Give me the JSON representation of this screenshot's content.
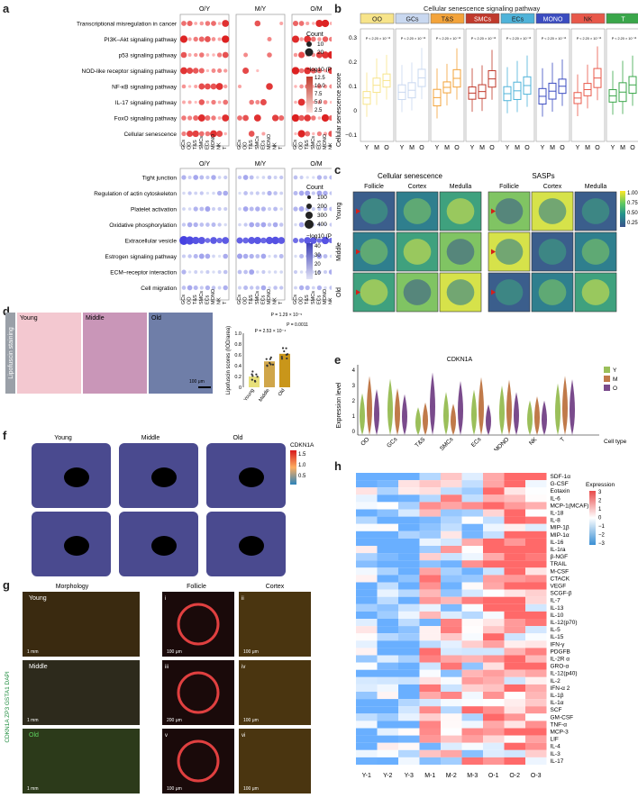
{
  "letters": {
    "a": "a",
    "b": "b",
    "c": "c",
    "d": "d",
    "e": "e",
    "f": "f",
    "g": "g",
    "h": "h"
  },
  "a": {
    "group_titles": [
      "O/Y",
      "M/Y",
      "O/M"
    ],
    "top_terms": [
      "Transcriptional misregulation in cancer",
      "PI3K–Akt signaling pathway",
      "p53 signaling pathway",
      "NOD-like receptor signaling pathway",
      "NF-κB signaling pathway",
      "IL-17 signaling pathway",
      "FoxO signaling pathway",
      "Cellular senescence"
    ],
    "bottom_terms": [
      "Tight junction",
      "Regulation of actin cytoskeleton",
      "Platelet activation",
      "Oxidative phosphorylation",
      "Extracellular vesicle",
      "Estrogen signaling pathway",
      "ECM–receptor interaction",
      "Cell migration"
    ],
    "celltypes_top": [
      "GCs",
      "OO",
      "T&S",
      "SMCs",
      "ECs",
      "MONO",
      "NK",
      "T"
    ],
    "legend_top": {
      "count_title": "Count",
      "count_values": [
        "10",
        "20"
      ],
      "p_title": "−log10 (P value)",
      "p_values": [
        "12.5",
        "10.0",
        "7.5",
        "5.0",
        "2.5"
      ]
    },
    "legend_bottom": {
      "count_title": "Count",
      "count_values": [
        "100",
        "200",
        "300",
        "400"
      ],
      "p_title": "−log10 (P value)",
      "p_values": [
        "40",
        "30",
        "20",
        "10"
      ]
    }
  },
  "b": {
    "title": "Cellular senescence signaling pathway",
    "ylabel": "Cellular senescence score",
    "yticks": [
      "0.3",
      "0.2",
      "0.1",
      "0",
      "−0.1"
    ],
    "groups": [
      "OO",
      "GCs",
      "T&S",
      "SMCs",
      "ECs",
      "MONO",
      "NK",
      "T"
    ],
    "group_colors": [
      "#f7e48a",
      "#c9d8f0",
      "#f3a33a",
      "#c0392b",
      "#4fb3d9",
      "#3b4cc0",
      "#e8584a",
      "#3aa64a"
    ],
    "xcats": [
      "Y",
      "M",
      "O"
    ]
  },
  "c": {
    "titles": [
      "Cellular senescence",
      "SASPs"
    ],
    "cols": [
      "Follicle",
      "Cortex",
      "Medulla",
      "Follicle",
      "Cortex",
      "Medulla"
    ],
    "rows": [
      "Young",
      "Middle",
      "Old"
    ],
    "scale": [
      "1.00",
      "0.75",
      "0.50",
      "0.25"
    ]
  },
  "d": {
    "side_label": "Lipofuscin staining",
    "cols": [
      "Young",
      "Middle",
      "Old"
    ],
    "scalebar": "100 μm",
    "ylabel": "Lipofuscin scores (IOD/area)",
    "pvals": [
      "P = 1.29 × 10⁻⁵",
      "P = 0.0011",
      "P = 2.53 × 10⁻⁴"
    ],
    "xcats": [
      "Young",
      "Middle",
      "Old"
    ],
    "yticks": [
      "1.0",
      "0.8",
      "0.6",
      "0.4",
      "0.2",
      "0"
    ]
  },
  "e": {
    "title": "CDKN1A",
    "ylabel": "Expression level",
    "xlabel": "Cell type",
    "cats": [
      "OO",
      "GCs",
      "T&S",
      "SMCs",
      "ECs",
      "MONO",
      "NK",
      "T"
    ],
    "legend": [
      "Y",
      "M",
      "O"
    ],
    "legend_colors": [
      "#9bbf5a",
      "#c07a4a",
      "#7a4b8c"
    ],
    "yticks": [
      "4",
      "3",
      "2",
      "1",
      "0"
    ]
  },
  "f": {
    "cols": [
      "Young",
      "Middle",
      "Old"
    ],
    "scale_title": "CDKN1A",
    "scale": [
      "1.5",
      "1.0",
      "0.5"
    ]
  },
  "g": {
    "col_titles": [
      "Morphology",
      "Follicle",
      "Cortex"
    ],
    "rows": [
      "Young",
      "Middle",
      "Old"
    ],
    "side_label": "CDKN1A ZP3 GSTA1 DAPI",
    "romans": [
      "i",
      "ii",
      "iii",
      "iv",
      "v",
      "vi"
    ],
    "scalebars": [
      "1 mm",
      "100 μm",
      "100 μm",
      "1 mm",
      "200 μm",
      "100 μm",
      "1 mm",
      "100 μm",
      "100 μm"
    ]
  },
  "h": {
    "rows": [
      "SDF-1α",
      "G-CSF",
      "Eotaxin",
      "IL-6",
      "MCP-1(MCAF)",
      "IL-18",
      "IL-8",
      "MIP-1β",
      "MIP-1α",
      "IL-16",
      "IL-1ra",
      "β-NGF",
      "TRAIL",
      "M-CSF",
      "CTACK",
      "VEGF",
      "SCGF-β",
      "IL-7",
      "IL-13",
      "IL-10",
      "IL-12(p70)",
      "IL-5",
      "IL-15",
      "IFN-γ",
      "PDGFB",
      "IL-2R α",
      "GRO-α",
      "IL-12(p40)",
      "IL-2",
      "IFN-α 2",
      "IL-1β",
      "IL-1α",
      "SCF",
      "GM-CSF",
      "TNF-α",
      "MCP-3",
      "LIF",
      "IL-4",
      "IL-3",
      "IL-17"
    ],
    "cols": [
      "Y-1",
      "Y-2",
      "Y-3",
      "M-1",
      "M-2",
      "M-3",
      "O-1",
      "O-2",
      "O-3"
    ],
    "legend_title": "Expression",
    "legend_ticks": [
      "3",
      "2",
      "1",
      "0",
      "−1",
      "−2",
      "−3"
    ]
  }
}
